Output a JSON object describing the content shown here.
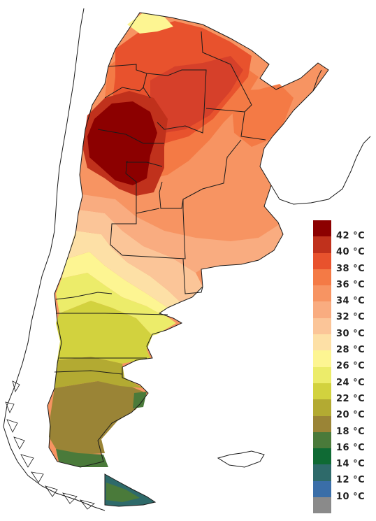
{
  "legend": {
    "items": [
      {
        "label": "",
        "color": "#8c0000"
      },
      {
        "label": "42 °C",
        "color": "#c0311c"
      },
      {
        "label": "40 °C",
        "color": "#e8522d"
      },
      {
        "label": "38 °C",
        "color": "#f47a45"
      },
      {
        "label": "36 °C",
        "color": "#f79462"
      },
      {
        "label": "34 °C",
        "color": "#f9ac80"
      },
      {
        "label": "32 °C",
        "color": "#fbc598"
      },
      {
        "label": "30 °C",
        "color": "#fde0a6"
      },
      {
        "label": "28 °C",
        "color": "#fdf592"
      },
      {
        "label": "26 °C",
        "color": "#ecec6a"
      },
      {
        "label": "24 °C",
        "color": "#d2d23e"
      },
      {
        "label": "22 °C",
        "color": "#b3aa32"
      },
      {
        "label": "20 °C",
        "color": "#9a8436"
      },
      {
        "label": "18 °C",
        "color": "#4a7a3a"
      },
      {
        "label": "16 °C",
        "color": "#0f6a34"
      },
      {
        "label": "14 °C",
        "color": "#2e6a6a"
      },
      {
        "label": "12 °C",
        "color": "#3a6ea8"
      },
      {
        "label": "10 °C",
        "color": "#8a8a8a"
      }
    ]
  },
  "colors": {
    "outline": "#1a1a1a",
    "background": "#ffffff"
  }
}
